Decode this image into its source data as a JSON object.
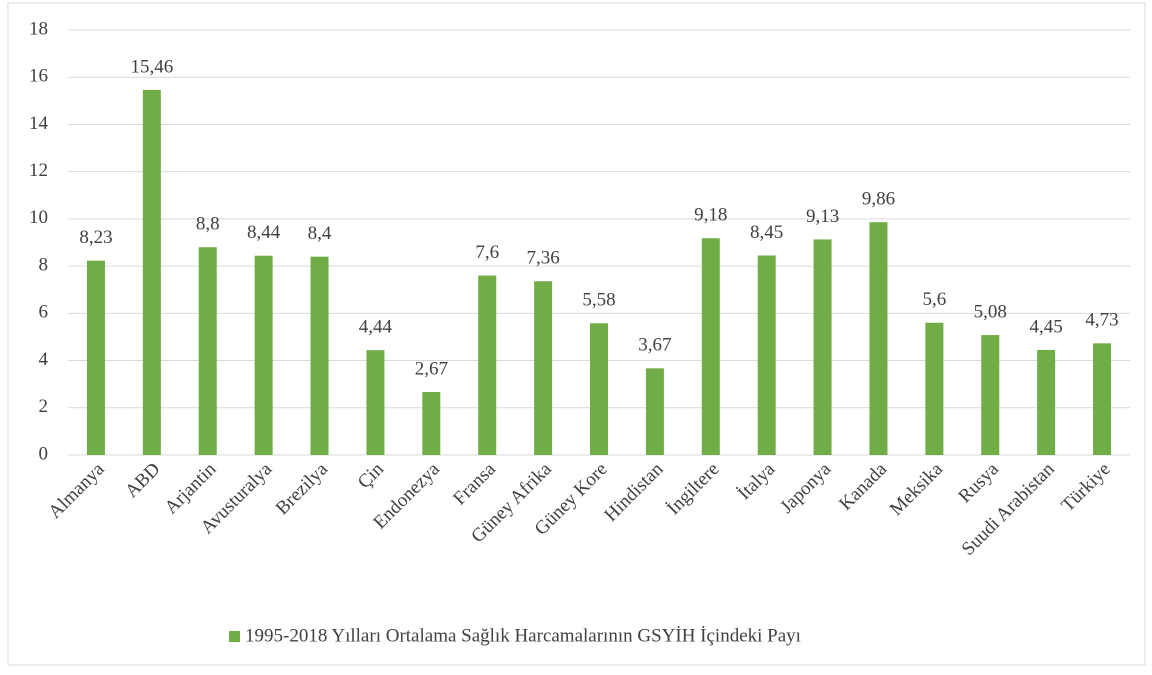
{
  "chart_data": {
    "type": "bar",
    "categories": [
      "Almanya",
      "ABD",
      "Arjantin",
      "Avusturalya",
      "Brezilya",
      "Çin",
      "Endonezya",
      "Fransa",
      "Güney Afrika",
      "Güney Kore",
      "Hindistan",
      "İngiltere",
      "İtalya",
      "Japonya",
      "Kanada",
      "Meksika",
      "Rusya",
      "Suudi Arabistan",
      "Türkiye"
    ],
    "series": [
      {
        "name": "1995-2018 Yılları Ortalama Sağlık Harcamalarının GSYİH İçindeki Payı",
        "color": "#70ad47",
        "values": [
          8.23,
          15.46,
          8.8,
          8.44,
          8.4,
          4.44,
          2.67,
          7.6,
          7.36,
          5.58,
          3.67,
          9.18,
          8.45,
          9.13,
          9.86,
          5.6,
          5.08,
          4.45,
          4.73
        ],
        "value_labels": [
          "8,23",
          "15,46",
          "8,8",
          "8,44",
          "8,4",
          "4,44",
          "2,67",
          "7,6",
          "7,36",
          "5,58",
          "3,67",
          "9,18",
          "8,45",
          "9,13",
          "9,86",
          "5,6",
          "5,08",
          "4,45",
          "4,73"
        ]
      }
    ],
    "ylim": [
      0,
      18
    ],
    "yticks": [
      0,
      2,
      4,
      6,
      8,
      10,
      12,
      14,
      16,
      18
    ],
    "grid": true,
    "legend": "bottom"
  }
}
